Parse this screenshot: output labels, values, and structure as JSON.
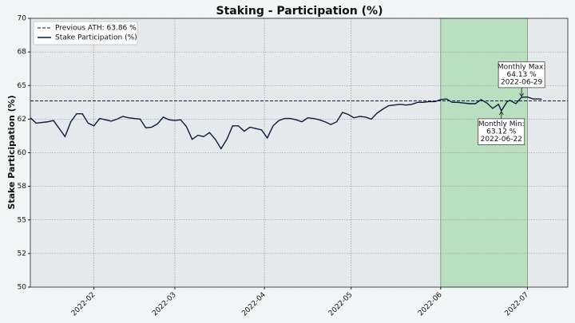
{
  "chart_data": {
    "type": "line",
    "title": "Staking - Participation (%)",
    "y_label": "Stake Participation (%)",
    "x": [
      "2022-01-10",
      "2022-01-12",
      "2022-01-14",
      "2022-01-16",
      "2022-01-18",
      "2022-01-20",
      "2022-01-22",
      "2022-01-24",
      "2022-01-26",
      "2022-01-28",
      "2022-01-30",
      "2022-02-01",
      "2022-02-03",
      "2022-02-05",
      "2022-02-07",
      "2022-02-09",
      "2022-02-11",
      "2022-02-13",
      "2022-02-15",
      "2022-02-17",
      "2022-02-19",
      "2022-02-21",
      "2022-02-23",
      "2022-02-25",
      "2022-02-27",
      "2022-03-01",
      "2022-03-03",
      "2022-03-05",
      "2022-03-07",
      "2022-03-09",
      "2022-03-11",
      "2022-03-13",
      "2022-03-15",
      "2022-03-17",
      "2022-03-19",
      "2022-03-21",
      "2022-03-23",
      "2022-03-25",
      "2022-03-27",
      "2022-03-29",
      "2022-03-31",
      "2022-04-02",
      "2022-04-04",
      "2022-04-06",
      "2022-04-08",
      "2022-04-10",
      "2022-04-12",
      "2022-04-14",
      "2022-04-16",
      "2022-04-18",
      "2022-04-20",
      "2022-04-22",
      "2022-04-24",
      "2022-04-26",
      "2022-04-28",
      "2022-04-30",
      "2022-05-02",
      "2022-05-04",
      "2022-05-06",
      "2022-05-08",
      "2022-05-10",
      "2022-05-12",
      "2022-05-14",
      "2022-05-16",
      "2022-05-18",
      "2022-05-20",
      "2022-05-22",
      "2022-05-24",
      "2022-05-26",
      "2022-05-28",
      "2022-05-30",
      "2022-06-01",
      "2022-06-03",
      "2022-06-05",
      "2022-06-07",
      "2022-06-09",
      "2022-06-11",
      "2022-06-13",
      "2022-06-15",
      "2022-06-17",
      "2022-06-19",
      "2022-06-21",
      "2022-06-22",
      "2022-06-24",
      "2022-06-25",
      "2022-06-27",
      "2022-06-29",
      "2022-07-01",
      "2022-07-03",
      "2022-07-05",
      "2022-07-06"
    ],
    "series": [
      {
        "name": "Stake Participation (%)",
        "color": "#0b1a3d",
        "values": [
          62.6,
          62.2,
          62.25,
          62.3,
          62.4,
          61.8,
          61.2,
          62.3,
          62.9,
          62.9,
          62.2,
          62.0,
          62.55,
          62.45,
          62.35,
          62.5,
          62.7,
          62.6,
          62.55,
          62.5,
          61.85,
          61.9,
          62.15,
          62.65,
          62.45,
          62.4,
          62.45,
          61.95,
          61.0,
          61.3,
          61.2,
          61.5,
          61.0,
          60.3,
          61.0,
          62.0,
          62.0,
          61.6,
          61.9,
          61.8,
          61.7,
          61.1,
          62.0,
          62.4,
          62.55,
          62.55,
          62.45,
          62.3,
          62.6,
          62.55,
          62.45,
          62.3,
          62.1,
          62.3,
          63.0,
          62.85,
          62.6,
          62.7,
          62.65,
          62.5,
          62.95,
          63.25,
          63.5,
          63.55,
          63.6,
          63.55,
          63.6,
          63.75,
          63.75,
          63.8,
          63.8,
          63.95,
          64.0,
          63.75,
          63.75,
          63.7,
          63.65,
          63.65,
          63.95,
          63.7,
          63.3,
          63.6,
          63.12,
          63.8,
          63.9,
          63.65,
          64.13,
          64.15,
          64.0,
          64.0,
          63.97
        ]
      }
    ],
    "reference_line": {
      "name": "Previous ATH: 63.86 %",
      "value": 63.86,
      "color": "#0b1a3d",
      "style": "dashed"
    },
    "highlight": {
      "start": "2022-06-01",
      "end": "2022-07-01",
      "color": "#b9dfc0"
    },
    "annotations": [
      {
        "lines": [
          "Monthly Max:",
          "64.13 %",
          "2022-06-29"
        ],
        "x": "2022-06-29",
        "y": 64.13,
        "position": "above"
      },
      {
        "lines": [
          "Monthly Min:",
          "63.12 %",
          "2022-06-22"
        ],
        "x": "2022-06-22",
        "y": 63.12,
        "position": "below"
      }
    ],
    "xlim": [
      "2022-01-10",
      "2022-07-15"
    ],
    "xticks": [
      "2022-02",
      "2022-03",
      "2022-04",
      "2022-05",
      "2022-06",
      "2022-07"
    ],
    "ylim": [
      50,
      70
    ],
    "yticks": [
      50,
      {
        "value": 52.5,
        "label": "52"
      },
      55,
      {
        "value": 57.5,
        "label": "58"
      },
      60,
      {
        "value": 62.5,
        "label": "62"
      },
      65,
      {
        "value": 67.5,
        "label": "68"
      },
      70
    ],
    "grid": true,
    "legend": "upper left"
  }
}
